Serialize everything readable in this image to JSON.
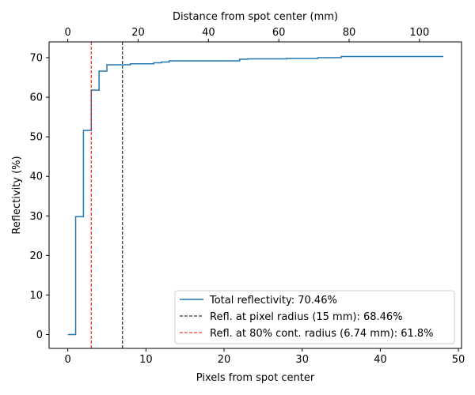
{
  "chart_data": {
    "type": "line",
    "title": "",
    "xlabel": "Pixels from spot center",
    "ylabel": "Reflectivity (%)",
    "x2label": "Distance from spot center (mm)",
    "xlim": [
      -2.4,
      50.4
    ],
    "ylim": [
      -3.5,
      74
    ],
    "x2lim": [
      -5.33,
      111.97
    ],
    "x_ticks": [
      0,
      10,
      20,
      30,
      40,
      50
    ],
    "y_ticks": [
      0,
      10,
      20,
      30,
      40,
      50,
      60,
      70
    ],
    "x2_ticks": [
      0,
      20,
      40,
      60,
      80,
      100
    ],
    "grid": false,
    "legend_position": "lower-right",
    "series": [
      {
        "name": "Total reflectivity: 70.46%",
        "color": "#1f77b4",
        "style": "steps-post",
        "x": [
          0,
          1,
          2,
          3,
          4,
          5,
          8,
          11,
          12,
          13,
          22,
          23,
          28,
          32,
          35,
          48
        ],
        "y": [
          0,
          29.8,
          51.6,
          61.8,
          66.6,
          68.2,
          68.46,
          68.7,
          68.9,
          69.2,
          69.6,
          69.7,
          69.8,
          70.0,
          70.3,
          70.46
        ]
      }
    ],
    "reference_lines": [
      {
        "name": "Refl. at pixel radius (15 mm): 68.46%",
        "color": "#000000",
        "style": "dashed",
        "x": 7
      },
      {
        "name": "Refl. at 80% cont. radius (6.74 mm): 61.8%",
        "color": "#ff0000",
        "style": "dashed",
        "x": 3
      }
    ]
  }
}
